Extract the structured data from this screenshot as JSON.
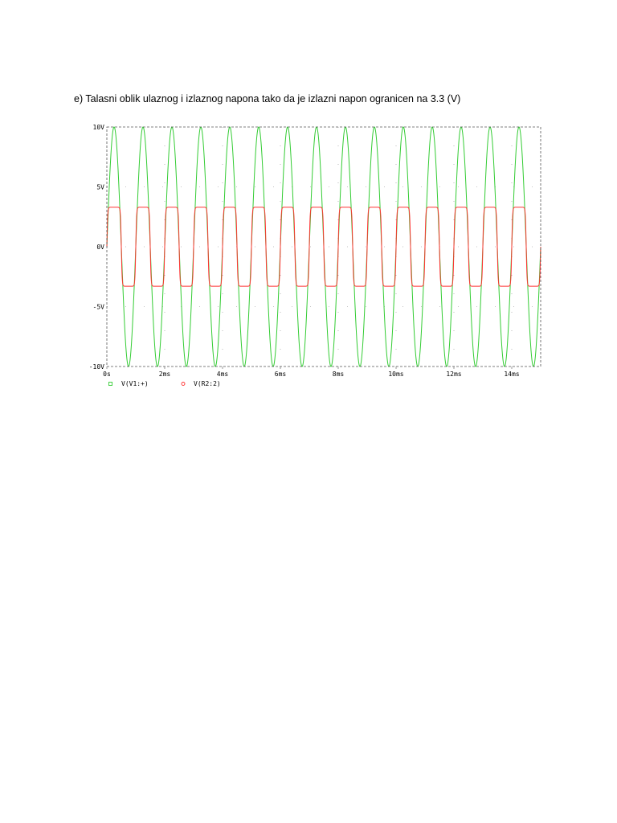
{
  "document": {
    "heading": "e) Talasni oblik ulaznog i izlaznog napona tako da je izlazni napon ogranicen na 3.3 (V)"
  },
  "chart_data": {
    "type": "line",
    "title": "",
    "xlabel": "",
    "ylabel": "",
    "xlim": [
      0,
      15
    ],
    "ylim": [
      -10,
      10
    ],
    "x_unit": "ms",
    "x_ticks": [
      "0s",
      "2ms",
      "4ms",
      "6ms",
      "8ms",
      "10ms",
      "12ms",
      "14ms"
    ],
    "y_ticks": [
      "10V",
      "5V",
      "0V",
      "-5V",
      "-10V"
    ],
    "grid": "dotted",
    "legend_position": "bottom-left",
    "series": [
      {
        "name": "V(V1:+)",
        "color": "#33cc33",
        "marker": "square",
        "waveform": "sine",
        "amplitude": 10,
        "frequency_khz": 1,
        "x": [
          0,
          0.25,
          0.5,
          0.75,
          1,
          1.25,
          1.5,
          1.75,
          2,
          2.25,
          2.5,
          2.75,
          3,
          3.25,
          3.5,
          3.75,
          4,
          4.25,
          4.5,
          4.75,
          5,
          5.25,
          5.5,
          5.75,
          6,
          6.25,
          6.5,
          6.75,
          7,
          7.25,
          7.5,
          7.75,
          8,
          8.25,
          8.5,
          8.75,
          9,
          9.25,
          9.5,
          9.75,
          10,
          10.25,
          10.5,
          10.75,
          11,
          11.25,
          11.5,
          11.75,
          12,
          12.25,
          12.5,
          12.75,
          13,
          13.25,
          13.5,
          13.75,
          14,
          14.25,
          14.5,
          14.75,
          15
        ],
        "y": [
          0,
          10,
          0,
          -10,
          0,
          10,
          0,
          -10,
          0,
          10,
          0,
          -10,
          0,
          10,
          0,
          -10,
          0,
          10,
          0,
          -10,
          0,
          10,
          0,
          -10,
          0,
          10,
          0,
          -10,
          0,
          10,
          0,
          -10,
          0,
          10,
          0,
          -10,
          0,
          10,
          0,
          -10,
          0,
          10,
          0,
          -10,
          0,
          10,
          0,
          -10,
          0,
          10,
          0,
          -10,
          0,
          10,
          0,
          -10,
          0,
          10,
          0,
          -10,
          0
        ]
      },
      {
        "name": "V(R2:2)",
        "color": "#ff3333",
        "marker": "circle",
        "waveform": "clipped sine",
        "clip_level": 3.3,
        "x": [
          0,
          0.25,
          0.5,
          0.75,
          1,
          1.25,
          1.5,
          1.75,
          2,
          2.25,
          2.5,
          2.75,
          3,
          3.25,
          3.5,
          3.75,
          4,
          4.25,
          4.5,
          4.75,
          5,
          5.25,
          5.5,
          5.75,
          6,
          6.25,
          6.5,
          6.75,
          7,
          7.25,
          7.5,
          7.75,
          8,
          8.25,
          8.5,
          8.75,
          9,
          9.25,
          9.5,
          9.75,
          10,
          10.25,
          10.5,
          10.75,
          11,
          11.25,
          11.5,
          11.75,
          12,
          12.25,
          12.5,
          12.75,
          13,
          13.25,
          13.5,
          13.75,
          14,
          14.25,
          14.5,
          14.75,
          15
        ],
        "y": [
          0,
          3.3,
          0,
          -3.3,
          0,
          3.3,
          0,
          -3.3,
          0,
          3.3,
          0,
          -3.3,
          0,
          3.3,
          0,
          -3.3,
          0,
          3.3,
          0,
          -3.3,
          0,
          3.3,
          0,
          -3.3,
          0,
          3.3,
          0,
          -3.3,
          0,
          3.3,
          0,
          -3.3,
          0,
          3.3,
          0,
          -3.3,
          0,
          3.3,
          0,
          -3.3,
          0,
          3.3,
          0,
          -3.3,
          0,
          3.3,
          0,
          -3.3,
          0,
          3.3,
          0,
          -3.3,
          0,
          3.3,
          0,
          -3.3,
          0,
          3.3,
          0,
          -3.3,
          0
        ]
      }
    ]
  }
}
